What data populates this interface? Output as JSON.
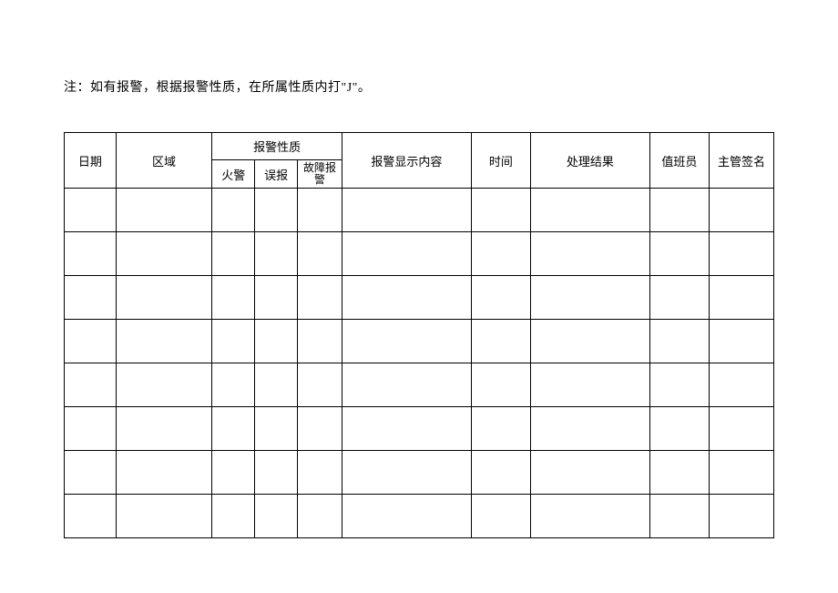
{
  "note": "注：如有报警，根据报警性质，在所属性质内打\"J\"。",
  "headers": {
    "date": "日期",
    "area": "区域",
    "alarm_nature": "报警性质",
    "sub_fire": "火警",
    "sub_false": "误报",
    "sub_fault": "故障报警",
    "display_content": "报警显示内容",
    "time": "时间",
    "result": "处理结果",
    "duty": "值班员",
    "sign": "主管签名"
  },
  "style": {
    "body_bg": "#ffffff",
    "text_color": "#000000",
    "border_color": "#000000",
    "note_fontsize": 14,
    "cell_fontsize": 13,
    "num_data_rows": 8
  }
}
